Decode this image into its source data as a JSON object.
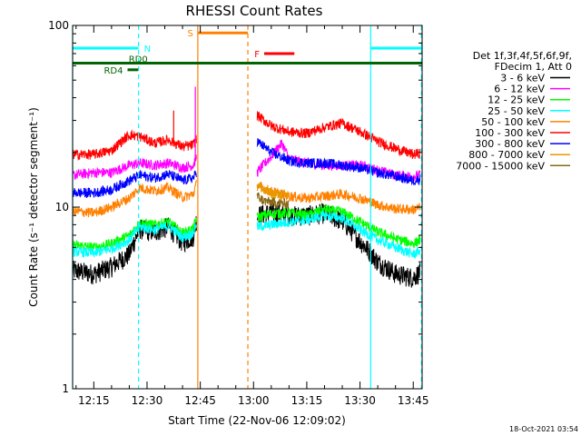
{
  "chart_data": {
    "type": "line",
    "title": "RHESSI Count Rates",
    "xlabel": "Start Time (22-Nov-06 12:09:02)",
    "ylabel": "Count Rate (s⁻¹ detector segment⁻¹)",
    "yscale": "log",
    "ylim": [
      1,
      100
    ],
    "xlim_minutes": [
      9.033,
      107.5
    ],
    "x_ticks": [
      {
        "minute": 15,
        "label": "12:15"
      },
      {
        "minute": 30,
        "label": "12:30"
      },
      {
        "minute": 45,
        "label": "12:45"
      },
      {
        "minute": 60,
        "label": "13:00"
      },
      {
        "minute": 75,
        "label": "13:15"
      },
      {
        "minute": 90,
        "label": "13:30"
      },
      {
        "minute": 105,
        "label": "13:45"
      }
    ],
    "y_ticks": [
      {
        "value": 1,
        "label": "1"
      },
      {
        "value": 10,
        "label": "10"
      },
      {
        "value": 100,
        "label": "100"
      }
    ],
    "data_gap_minutes": [
      44.0,
      61.0
    ],
    "legend": {
      "placement": "right",
      "header": [
        "Det 1f,3f,4f,5f,6f,9f,",
        "FDecim 1, Att 0"
      ],
      "entries": [
        "3 - 6 keV",
        "6 - 12 keV",
        "12 - 25 keV",
        "25 - 50 keV",
        "50 - 100 keV",
        "100 - 300 keV",
        "300 - 800 keV",
        "800 - 7000 keV",
        "7000 - 15000 keV"
      ]
    },
    "series": [
      {
        "name": "3 - 6 keV",
        "color": "#000000",
        "x": [
          9,
          15,
          20,
          25,
          28,
          32,
          36,
          40,
          43,
          44,
          61,
          65,
          70,
          75,
          80,
          85,
          90,
          95,
          100,
          105,
          107
        ],
        "y": [
          4.5,
          4.3,
          4.7,
          5.5,
          7.6,
          7.3,
          7.8,
          6.4,
          6.9,
          8.6,
          9.0,
          9.4,
          9.0,
          9.0,
          9.3,
          8.4,
          6.5,
          5.0,
          4.3,
          4.1,
          4.4
        ]
      },
      {
        "name": "6 - 12 keV",
        "color": "#ff00ff",
        "x": [
          9,
          15,
          20,
          25,
          28,
          32,
          36,
          40,
          43,
          44,
          61,
          65,
          68,
          70,
          75,
          80,
          85,
          90,
          95,
          100,
          105,
          107
        ],
        "y": [
          15.0,
          15.5,
          15.5,
          17.0,
          17.5,
          17.0,
          17.5,
          16.5,
          17.0,
          19.0,
          15.5,
          19.0,
          22.5,
          18.5,
          17.5,
          17.0,
          17.0,
          17.0,
          16.0,
          15.0,
          14.8,
          15.0
        ]
      },
      {
        "name": "12 - 25 keV",
        "color": "#00ff00",
        "x": [
          9,
          15,
          20,
          25,
          28,
          32,
          36,
          40,
          43,
          44,
          61,
          65,
          70,
          75,
          80,
          85,
          90,
          95,
          100,
          105,
          107
        ],
        "y": [
          6.2,
          6.0,
          6.3,
          7.0,
          8.2,
          8.0,
          8.3,
          7.2,
          7.6,
          8.8,
          8.8,
          9.2,
          9.3,
          9.0,
          9.7,
          9.4,
          8.3,
          7.3,
          6.7,
          6.3,
          6.6
        ]
      },
      {
        "name": "25 - 50 keV",
        "color": "#00ffff",
        "x": [
          9,
          15,
          20,
          25,
          28,
          32,
          36,
          40,
          43,
          44,
          61,
          65,
          70,
          75,
          80,
          85,
          90,
          95,
          100,
          105,
          107
        ],
        "y": [
          5.7,
          5.6,
          5.9,
          6.6,
          7.8,
          7.5,
          7.9,
          6.8,
          7.2,
          8.3,
          7.8,
          8.0,
          8.3,
          8.5,
          9.0,
          8.7,
          7.5,
          6.6,
          6.0,
          5.5,
          5.8
        ]
      },
      {
        "name": "50 - 100 keV",
        "color": "#ff8000",
        "x": [
          9,
          15,
          20,
          25,
          28,
          32,
          36,
          40,
          43,
          44,
          61,
          65,
          70,
          75,
          80,
          85,
          90,
          95,
          100,
          105,
          107
        ],
        "y": [
          9.5,
          9.3,
          10.0,
          11.2,
          12.8,
          12.3,
          12.8,
          11.3,
          11.8,
          13.5,
          13.2,
          12.2,
          11.5,
          11.2,
          11.5,
          11.8,
          11.2,
          10.3,
          9.8,
          9.7,
          10.0
        ]
      },
      {
        "name": "100 - 300 keV",
        "color": "#ff0000",
        "x": [
          9,
          15,
          20,
          25,
          28,
          32,
          36,
          40,
          43,
          44,
          61,
          65,
          70,
          75,
          80,
          85,
          90,
          95,
          100,
          105,
          107
        ],
        "y": [
          19.5,
          19.5,
          20.5,
          25.0,
          24.5,
          22.5,
          23.5,
          21.5,
          22.0,
          24.0,
          32.0,
          28.0,
          26.0,
          25.5,
          27.5,
          29.0,
          26.0,
          23.0,
          21.0,
          19.5,
          19.8
        ]
      },
      {
        "name": "300 - 800 keV",
        "color": "#0000ff",
        "x": [
          9,
          15,
          20,
          25,
          28,
          32,
          36,
          40,
          43,
          44,
          61,
          65,
          70,
          75,
          80,
          85,
          90,
          95,
          100,
          105,
          107
        ],
        "y": [
          12.0,
          12.0,
          12.5,
          14.0,
          15.0,
          14.5,
          15.2,
          14.0,
          14.5,
          15.5,
          23.0,
          20.0,
          18.0,
          17.5,
          17.5,
          17.0,
          16.5,
          15.5,
          14.8,
          14.0,
          14.3
        ]
      },
      {
        "name": "800 - 7000 keV",
        "color": "#e69900",
        "x": [
          61,
          63,
          66,
          70
        ],
        "y": [
          13.5,
          12.2,
          11.8,
          11.6
        ]
      },
      {
        "name": "7000 - 15000 keV",
        "color": "#8b6914",
        "x": [
          61,
          63,
          66,
          70
        ],
        "y": [
          11.5,
          10.8,
          10.6,
          10.4
        ]
      }
    ],
    "spikes": [
      {
        "series": "100 - 300 keV",
        "x": 37.5,
        "y": 34.0
      },
      {
        "series": "6 - 12 keV",
        "x": 43.6,
        "y": 46.0
      }
    ],
    "annotations": {
      "vlines": [
        {
          "minute": 9.033,
          "color": "#00ffff",
          "style": "solid"
        },
        {
          "minute": 27.6,
          "color": "#00ffff",
          "style": "dashed"
        },
        {
          "minute": 44.3,
          "color": "#ff8000",
          "style": "solid"
        },
        {
          "minute": 58.4,
          "color": "#ff8000",
          "style": "dashed"
        },
        {
          "minute": 93.0,
          "color": "#00ffff",
          "style": "solid"
        },
        {
          "minute": 107.3,
          "color": "#00ffff",
          "style": "dashed"
        }
      ],
      "hbars": [
        {
          "label": "N",
          "color": "#00ffff",
          "x0": 9.033,
          "x1": 27.6,
          "y": 75.0,
          "label_side": "right"
        },
        {
          "label": "",
          "color": "#00ffff",
          "x0": 93.0,
          "x1": 107.5,
          "y": 75.0,
          "label_side": "none"
        },
        {
          "label": "S",
          "color": "#ff8000",
          "x0": 44.3,
          "x1": 58.4,
          "y": 91.0,
          "label_side": "left"
        },
        {
          "label": "F",
          "color": "#ff0000",
          "x0": 63.0,
          "x1": 71.5,
          "y": 70.0,
          "label_side": "left"
        },
        {
          "label": "RD0",
          "color": "#006400",
          "x0": 9.033,
          "x1": 107.5,
          "y": 62.0,
          "label_side": "above",
          "label_at": 27.5
        },
        {
          "label": "RD4",
          "color": "#006400",
          "x0": 24.5,
          "x1": 27.5,
          "y": 57.0,
          "label_side": "left"
        }
      ]
    },
    "timestamp": "18-Oct-2021 03:54"
  }
}
